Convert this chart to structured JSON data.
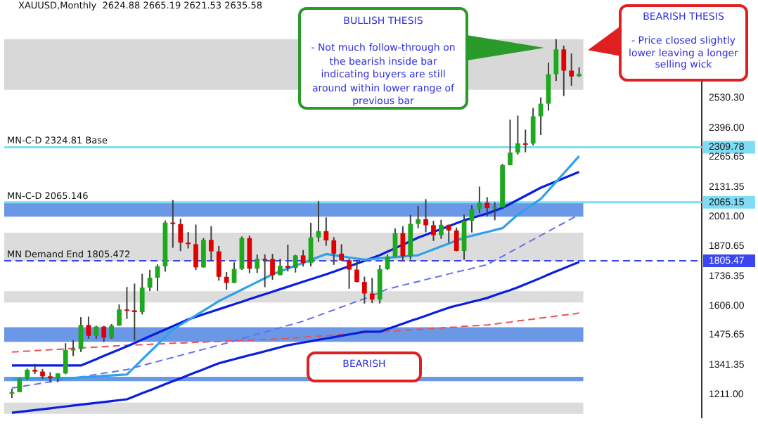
{
  "chart_data": {
    "type": "candlestick",
    "title": "XAUUSD,Monthly  2624.88 2665.19 2621.53 2635.58",
    "categories": [
      null,
      null,
      null,
      null,
      null,
      null,
      null,
      null,
      null,
      null,
      null,
      null,
      null,
      null,
      null,
      null,
      null,
      null,
      null,
      null,
      null,
      null,
      null,
      null,
      null,
      null,
      null,
      null,
      null,
      null,
      null,
      null,
      null,
      null,
      null,
      null,
      null,
      null,
      null,
      null,
      null,
      null,
      null,
      null,
      null,
      null,
      null,
      null,
      null,
      null,
      null,
      null,
      null,
      null,
      null,
      null,
      null,
      null,
      null,
      null,
      null,
      null,
      null,
      null,
      null,
      null,
      null,
      null,
      null,
      null,
      null,
      null,
      null,
      null,
      null
    ],
    "ohlc": [
      [
        1215,
        1237,
        1196,
        1222
      ],
      [
        1222,
        1284,
        1221,
        1282
      ],
      [
        1282,
        1326,
        1276,
        1321
      ],
      [
        1321,
        1347,
        1302,
        1313
      ],
      [
        1313,
        1324,
        1281,
        1292
      ],
      [
        1292,
        1310,
        1266,
        1283
      ],
      [
        1283,
        1306,
        1266,
        1305
      ],
      [
        1305,
        1439,
        1301,
        1409
      ],
      [
        1409,
        1453,
        1382,
        1413
      ],
      [
        1413,
        1555,
        1400,
        1520
      ],
      [
        1520,
        1557,
        1459,
        1472
      ],
      [
        1472,
        1517,
        1459,
        1513
      ],
      [
        1513,
        1516,
        1445,
        1464
      ],
      [
        1464,
        1524,
        1459,
        1517
      ],
      [
        1517,
        1611,
        1517,
        1589
      ],
      [
        1589,
        1689,
        1547,
        1585
      ],
      [
        1585,
        1704,
        1451,
        1577
      ],
      [
        1577,
        1747,
        1567,
        1686
      ],
      [
        1686,
        1765,
        1671,
        1730
      ],
      [
        1730,
        1789,
        1671,
        1781
      ],
      [
        1781,
        1984,
        1757,
        1975
      ],
      [
        1975,
        2075,
        1863,
        1968
      ],
      [
        1968,
        1992,
        1848,
        1886
      ],
      [
        1886,
        1933,
        1860,
        1879
      ],
      [
        1879,
        1966,
        1764,
        1776
      ],
      [
        1776,
        1906,
        1775,
        1898
      ],
      [
        1898,
        1959,
        1802,
        1847
      ],
      [
        1847,
        1871,
        1717,
        1734
      ],
      [
        1734,
        1755,
        1677,
        1707
      ],
      [
        1707,
        1798,
        1706,
        1769
      ],
      [
        1769,
        1913,
        1765,
        1906
      ],
      [
        1906,
        1917,
        1750,
        1770
      ],
      [
        1770,
        1833,
        1751,
        1814
      ],
      [
        1814,
        1834,
        1688,
        1813
      ],
      [
        1813,
        1836,
        1721,
        1742
      ],
      [
        1742,
        1814,
        1740,
        1783
      ],
      [
        1783,
        1877,
        1758,
        1774
      ],
      [
        1774,
        1832,
        1753,
        1829
      ],
      [
        1829,
        1853,
        1780,
        1796
      ],
      [
        1796,
        1974,
        1780,
        1909
      ],
      [
        1909,
        2070,
        1890,
        1937
      ],
      [
        1937,
        1998,
        1872,
        1896
      ],
      [
        1896,
        1910,
        1787,
        1837
      ],
      [
        1837,
        1879,
        1805,
        1807
      ],
      [
        1807,
        1814,
        1681,
        1766
      ],
      [
        1766,
        1808,
        1709,
        1711
      ],
      [
        1711,
        1735,
        1615,
        1660
      ],
      [
        1660,
        1729,
        1617,
        1633
      ],
      [
        1633,
        1786,
        1616,
        1768
      ],
      [
        1768,
        1833,
        1765,
        1824
      ],
      [
        1824,
        1949,
        1823,
        1928
      ],
      [
        1928,
        1959,
        1804,
        1826
      ],
      [
        1826,
        2009,
        1810,
        1969
      ],
      [
        1969,
        2049,
        1950,
        1990
      ],
      [
        1990,
        2079,
        1932,
        1963
      ],
      [
        1963,
        1983,
        1893,
        1919
      ],
      [
        1919,
        1987,
        1903,
        1965
      ],
      [
        1965,
        1966,
        1885,
        1940
      ],
      [
        1940,
        1953,
        1847,
        1849
      ],
      [
        1849,
        2010,
        1810,
        1983
      ],
      [
        1983,
        2052,
        1931,
        2036
      ],
      [
        2036,
        2135,
        2017,
        2063
      ],
      [
        2063,
        2088,
        2002,
        2039
      ],
      [
        2039,
        2065,
        1985,
        2044
      ],
      [
        2044,
        2236,
        2039,
        2230
      ],
      [
        2230,
        2432,
        2229,
        2286
      ],
      [
        2286,
        2450,
        2277,
        2327
      ],
      [
        2327,
        2388,
        2287,
        2326
      ],
      [
        2326,
        2484,
        2318,
        2447
      ],
      [
        2447,
        2531,
        2364,
        2503
      ],
      [
        2503,
        2685,
        2472,
        2634
      ],
      [
        2634,
        2790,
        2604,
        2744
      ],
      [
        2744,
        2761,
        2537,
        2650
      ],
      [
        2650,
        2726,
        2583,
        2624
      ],
      [
        2624.88,
        2665.19,
        2621.53,
        2635.58
      ]
    ],
    "colors": [
      "#1ea81e",
      "#1ea81e",
      "#1ea81e",
      "#e00000",
      "#e00000",
      "#e00000",
      "#1ea81e",
      "#1ea81e",
      "#1ea81e",
      "#1ea81e",
      "#e00000",
      "#1ea81e",
      "#e00000",
      "#1ea81e",
      "#1ea81e",
      "#e00000",
      "#e00000",
      "#1ea81e",
      "#1ea81e",
      "#1ea81e",
      "#1ea81e",
      "#e00000",
      "#e00000",
      "#e00000",
      "#e00000",
      "#1ea81e",
      "#e00000",
      "#e00000",
      "#e00000",
      "#1ea81e",
      "#1ea81e",
      "#e00000",
      "#1ea81e",
      "#e00000",
      "#e00000",
      "#1ea81e",
      "#e00000",
      "#1ea81e",
      "#e00000",
      "#1ea81e",
      "#1ea81e",
      "#e00000",
      "#e00000",
      "#e00000",
      "#e00000",
      "#e00000",
      "#e00000",
      "#e00000",
      "#1ea81e",
      "#1ea81e",
      "#1ea81e",
      "#e00000",
      "#1ea81e",
      "#1ea81e",
      "#e00000",
      "#e00000",
      "#1ea81e",
      "#e00000",
      "#e00000",
      "#1ea81e",
      "#1ea81e",
      "#1ea81e",
      "#e00000",
      "#1ea81e",
      "#1ea81e",
      "#1ea81e",
      "#1ea81e",
      "#e00000",
      "#1ea81e",
      "#1ea81e",
      "#1ea81e",
      "#1ea81e",
      "#e00000",
      "#e00000",
      "#1ea81e"
    ],
    "series": [
      {
        "type": "line",
        "color": "#2ea0ee",
        "values": [
          1280,
          1281,
          1281,
          1282,
          1282,
          1283,
          1284,
          1284,
          1285,
          1287,
          1289,
          1291,
          1294,
          1296,
          1298,
          1300,
          1333,
          1367,
          1400,
          1433,
          1467,
          1500,
          1521,
          1542,
          1563,
          1584,
          1605,
          1626,
          1643,
          1660,
          1677,
          1694,
          1711,
          1728,
          1745,
          1758,
          1771,
          1784,
          1796,
          1809,
          1822,
          1835,
          1830,
          1825,
          1820,
          1815,
          1810,
          1813,
          1816,
          1819,
          1821,
          1824,
          1827,
          1830,
          1843,
          1856,
          1869,
          1882,
          1895,
          1908,
          1916,
          1925,
          1933,
          1942,
          1950,
          1980,
          2010,
          2033,
          2057,
          2080,
          2118,
          2156,
          2194,
          2232,
          2270
        ]
      },
      {
        "type": "line",
        "color": "#0a1ee0",
        "values": [
          1340,
          1340,
          1340,
          1340,
          1340,
          1340,
          1340,
          1340,
          1340,
          1340,
          1354,
          1368,
          1383,
          1397,
          1411,
          1425,
          1440,
          1455,
          1470,
          1485,
          1500,
          1515,
          1530,
          1545,
          1556,
          1568,
          1579,
          1590,
          1601,
          1612,
          1623,
          1635,
          1646,
          1657,
          1668,
          1679,
          1690,
          1701,
          1712,
          1723,
          1734,
          1745,
          1757,
          1769,
          1781,
          1793,
          1805,
          1818,
          1830,
          1846,
          1861,
          1877,
          1892,
          1908,
          1921,
          1934,
          1946,
          1959,
          1972,
          1985,
          1995,
          2005,
          2015,
          2028,
          2040,
          2058,
          2076,
          2094,
          2112,
          2130,
          2144,
          2158,
          2172,
          2186,
          2200
        ]
      },
      {
        "type": "line",
        "color": "#0a1ee0",
        "values": [
          1130,
          1134,
          1138,
          1142,
          1146,
          1150,
          1154,
          1158,
          1162,
          1166,
          1170,
          1174,
          1178,
          1182,
          1186,
          1190,
          1203,
          1217,
          1230,
          1243,
          1257,
          1270,
          1283,
          1297,
          1310,
          1323,
          1337,
          1350,
          1359,
          1368,
          1377,
          1386,
          1394,
          1403,
          1412,
          1421,
          1430,
          1436,
          1442,
          1448,
          1454,
          1460,
          1466,
          1472,
          1478,
          1484,
          1490,
          1490,
          1490,
          1502,
          1514,
          1526,
          1538,
          1549,
          1561,
          1573,
          1585,
          1597,
          1606,
          1614,
          1623,
          1631,
          1640,
          1652,
          1664,
          1675,
          1687,
          1701,
          1715,
          1729,
          1744,
          1758,
          1772,
          1786,
          1800
        ]
      },
      {
        "type": "line",
        "color": "#6670f0",
        "line_style": "dashed",
        "values": [
          1240,
          1245,
          1251,
          1256,
          1262,
          1267,
          1273,
          1278,
          1284,
          1289,
          1295,
          1300,
          1306,
          1311,
          1317,
          1322,
          1331,
          1340,
          1349,
          1358,
          1367,
          1376,
          1385,
          1394,
          1403,
          1412,
          1421,
          1430,
          1440,
          1449,
          1459,
          1469,
          1479,
          1488,
          1498,
          1508,
          1518,
          1527,
          1537,
          1550,
          1562,
          1575,
          1587,
          1600,
          1612,
          1625,
          1637,
          1650,
          1665,
          1680,
          1688,
          1697,
          1705,
          1713,
          1722,
          1730,
          1738,
          1747,
          1755,
          1763,
          1771,
          1780,
          1788,
          1807,
          1825,
          1844,
          1862,
          1881,
          1899,
          1918,
          1936,
          1955,
          1973,
          1992,
          2010
        ]
      },
      {
        "type": "line",
        "color": "#f05050",
        "line_style": "dashed",
        "values": [
          1400,
          1402,
          1404,
          1406,
          1408,
          1410,
          1412,
          1414,
          1416,
          1418,
          1420,
          1422,
          1424,
          1426,
          1428,
          1430,
          1431,
          1433,
          1434,
          1436,
          1437,
          1439,
          1440,
          1441,
          1443,
          1444,
          1446,
          1447,
          1449,
          1450,
          1451,
          1453,
          1454,
          1456,
          1457,
          1459,
          1460,
          1463,
          1465,
          1468,
          1470,
          1473,
          1475,
          1478,
          1480,
          1483,
          1485,
          1488,
          1490,
          1492,
          1494,
          1496,
          1499,
          1501,
          1503,
          1505,
          1507,
          1509,
          1511,
          1514,
          1516,
          1518,
          1520,
          1524,
          1529,
          1533,
          1538,
          1542,
          1546,
          1551,
          1555,
          1560,
          1564,
          1568,
          1573
        ]
      }
    ],
    "ylim": [
      1110,
      2925
    ],
    "yticks": [
      {
        "value": 1211,
        "label": "1211.00"
      },
      {
        "value": 1341.35,
        "label": "1341.35"
      },
      {
        "value": 1475.65,
        "label": "1475.65"
      },
      {
        "value": 1606,
        "label": "1606.00"
      },
      {
        "value": 1736.35,
        "label": "1736.35"
      },
      {
        "value": 1870.65,
        "label": "1870.65"
      },
      {
        "value": 2001,
        "label": "2001.00"
      },
      {
        "value": 2131.35,
        "label": "2131.35"
      },
      {
        "value": 2265.65,
        "label": "2265.65"
      },
      {
        "value": 2309.78,
        "label": "2309.78"
      },
      {
        "value": 2065.15,
        "label": "2065.15"
      },
      {
        "value": 1805.47,
        "label": "1805.47"
      },
      {
        "value": 2396,
        "label": "2396.00"
      },
      {
        "value": 2530.3,
        "label": "2530.30"
      }
    ],
    "tick_labels": "y",
    "ref_lines": [
      {
        "axis": "y",
        "value": 2309.78,
        "label": "MN-C-D 2324.81 Base",
        "color": "#80dcf5"
      },
      {
        "axis": "y",
        "value": 2065.15,
        "label": "MN-C-D 2065.146",
        "color": "#80dcf5"
      },
      {
        "axis": "y",
        "value": 1805.47,
        "label": "MN Demand End 1805.472",
        "color": "#3c46f0",
        "line_style": "dashed"
      }
    ],
    "bands": [
      {
        "axis": "y",
        "from": 2565,
        "to": 2790,
        "color": "#d8d8d8"
      },
      {
        "axis": "y",
        "from": 2001,
        "to": 2065,
        "color": "#6a98e6"
      },
      {
        "axis": "y",
        "from": 1805,
        "to": 1930,
        "color": "#dcdcdc"
      },
      {
        "axis": "y",
        "from": 1620,
        "to": 1670,
        "color": "#dcdcdc"
      },
      {
        "axis": "y",
        "from": 1445,
        "to": 1510,
        "color": "#6a98e6"
      },
      {
        "axis": "y",
        "from": 1270,
        "to": 1290,
        "color": "#6a98e6"
      },
      {
        "axis": "y",
        "from": 1125,
        "to": 1175,
        "color": "#dcdcdc"
      }
    ],
    "annotations": [
      "BULLISH THESIS\n\n- Not much follow-through on the bearish inside bar indicating buyers are still around within lower range of previous bar",
      "BEARISH THESIS\n\n- Price closed slightly lower leaving a longer selling wick",
      "BEARISH"
    ]
  }
}
